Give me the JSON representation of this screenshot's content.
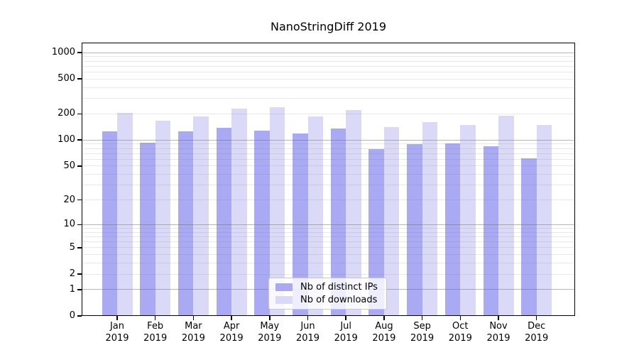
{
  "chart_data": {
    "type": "bar",
    "title": "NanoStringDiff 2019",
    "categories": [
      "Jan",
      "Feb",
      "Mar",
      "Apr",
      "May",
      "Jun",
      "Jul",
      "Aug",
      "Sep",
      "Oct",
      "Nov",
      "Dec"
    ],
    "category_year": "2019",
    "series": [
      {
        "name": "Nb of distinct IPs",
        "color": "#aaaaf4",
        "values": [
          126,
          94,
          125,
          138,
          128,
          119,
          136,
          79,
          90,
          91,
          84,
          62
        ]
      },
      {
        "name": "Nb of downloads",
        "color": "#dadaf8",
        "values": [
          205,
          167,
          186,
          228,
          237,
          187,
          220,
          141,
          162,
          149,
          190,
          148
        ]
      }
    ],
    "xlabel": "",
    "ylabel": "",
    "y_scale": "log1p",
    "ylim": [
      0,
      1300
    ],
    "yticks": [
      0,
      1,
      2,
      5,
      10,
      20,
      50,
      100,
      200,
      500,
      1000
    ],
    "grid": {
      "on": true,
      "major_values": [
        1,
        10,
        100,
        1000
      ],
      "minor_values": [
        2,
        3,
        4,
        5,
        6,
        7,
        8,
        9,
        20,
        30,
        40,
        50,
        60,
        70,
        80,
        90,
        200,
        300,
        400,
        500,
        600,
        700,
        800,
        900
      ],
      "drawn_over_bars": true
    },
    "legend": {
      "position": "inside-bottom-center",
      "background": "rgba(255,255,255,0.8)",
      "border_color": "#c9c9c9"
    }
  }
}
